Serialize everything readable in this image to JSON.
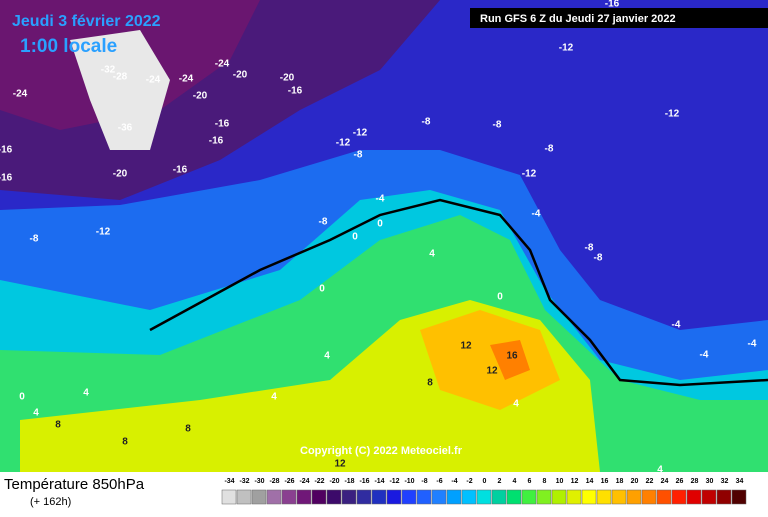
{
  "header": {
    "date": "Jeudi 3 février 2022",
    "time": "1:00 locale",
    "run": "Run GFS 6 Z du Jeudi 27 janvier 2022"
  },
  "footer": {
    "title": "Température 850hPa",
    "lead": "(+ 162h)",
    "copyright": "Copyright (C) 2022 Meteociel.fr"
  },
  "map": {
    "labels": [
      -24,
      -32,
      -28,
      -24,
      -24,
      -24,
      -20,
      -20,
      -20,
      -16,
      -36,
      -16,
      -16,
      -20,
      -16,
      -16,
      -16,
      -8,
      -12,
      -8,
      -12,
      -12,
      -8,
      -8,
      -8,
      -12,
      -16,
      -12,
      -8,
      -12,
      -4,
      -4,
      -8,
      -8,
      0,
      0,
      4,
      0,
      0,
      4,
      4,
      -4,
      -4,
      -4,
      12,
      16,
      12,
      8,
      4,
      4,
      0,
      8,
      8,
      8,
      12,
      4,
      4
    ]
  },
  "scale": {
    "values": [
      -34,
      -32,
      -30,
      -28,
      -26,
      -24,
      -22,
      -20,
      -18,
      -16,
      -14,
      -12,
      -10,
      -8,
      -6,
      -4,
      -2,
      0,
      2,
      4,
      6,
      8,
      10,
      12,
      14,
      16,
      18,
      20,
      22,
      24,
      26,
      28,
      30,
      32,
      34
    ],
    "colors": [
      "#e0e0e0",
      "#c0c0c0",
      "#a0a0a0",
      "#a070a8",
      "#8a4090",
      "#701878",
      "#500060",
      "#3c0a6a",
      "#3a2080",
      "#302ca0",
      "#2030c0",
      "#1a1ae0",
      "#2040ff",
      "#2060ff",
      "#2080ff",
      "#00a0ff",
      "#00c0ff",
      "#00e0e0",
      "#00d0a0",
      "#00e070",
      "#40f040",
      "#80f020",
      "#b0f000",
      "#e0f000",
      "#ffff00",
      "#ffe000",
      "#ffc000",
      "#ffa000",
      "#ff8000",
      "#ff5000",
      "#ff2000",
      "#e00000",
      "#c00000",
      "#900000",
      "#500000"
    ]
  }
}
